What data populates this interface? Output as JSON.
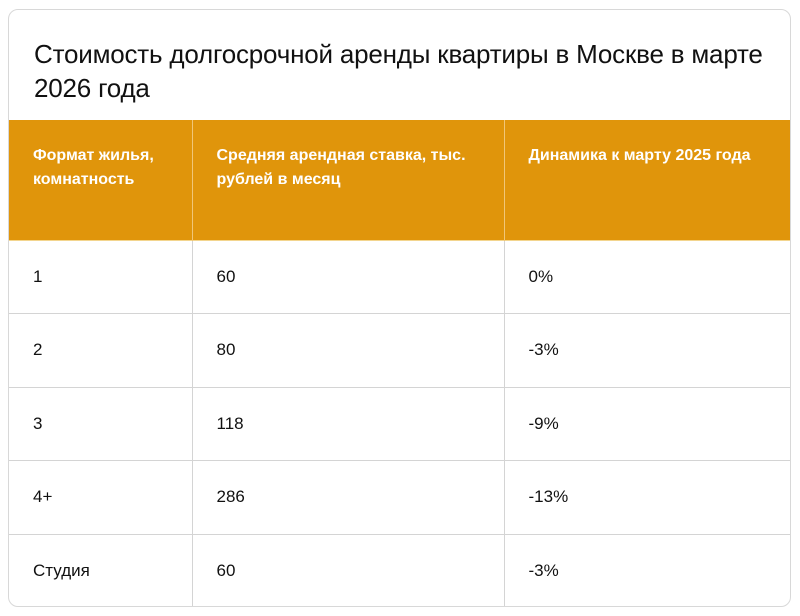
{
  "title": "Стоимость долгосрочной аренды квартиры в Москве в марте 2026 года",
  "accent_color": "#e0950b",
  "table": {
    "headers": [
      "Формат жилья, комнатность",
      "Средняя арендная ставка, тыс. рублей в месяц",
      "Динамика к марту 2025 года"
    ],
    "rows": [
      [
        "1",
        "60",
        "0%"
      ],
      [
        "2",
        "80",
        "-3%"
      ],
      [
        "3",
        "118",
        "-9%"
      ],
      [
        "4+",
        "286",
        "-13%"
      ],
      [
        "Студия",
        "60",
        "-3%"
      ]
    ]
  }
}
